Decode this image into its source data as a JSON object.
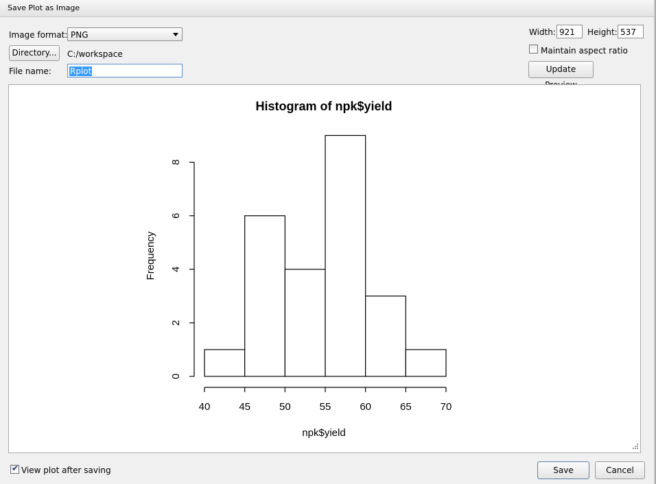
{
  "window": {
    "title": "Save Plot as Image"
  },
  "format": {
    "label": "Image format:",
    "value": "PNG"
  },
  "directory": {
    "button_label": "Directory...",
    "path": "C:/workspace"
  },
  "filename": {
    "label": "File name:",
    "value": "Rplot"
  },
  "size": {
    "width_label": "Width:",
    "width_value": "921",
    "height_label": "Height:",
    "height_value": "537"
  },
  "aspect": {
    "label": "Maintain aspect ratio",
    "checked": false
  },
  "update_preview": {
    "label": "Update Preview"
  },
  "view_after": {
    "label": "View plot after saving",
    "checked": true
  },
  "actions": {
    "save": "Save",
    "cancel": "Cancel"
  },
  "chart_data": {
    "type": "bar",
    "title": "Histogram of npk$yield",
    "xlabel": "npk$yield",
    "ylabel": "Frequency",
    "bins": [
      [
        40,
        45
      ],
      [
        45,
        50
      ],
      [
        50,
        55
      ],
      [
        55,
        60
      ],
      [
        60,
        65
      ],
      [
        65,
        70
      ]
    ],
    "values": [
      1,
      6,
      4,
      9,
      3,
      1
    ],
    "xticks": [
      "40",
      "45",
      "50",
      "55",
      "60",
      "65",
      "70"
    ],
    "yticks": [
      "0",
      "2",
      "4",
      "6",
      "8"
    ],
    "xlim": [
      40,
      70
    ],
    "ylim": [
      0,
      9
    ],
    "grid": false
  }
}
